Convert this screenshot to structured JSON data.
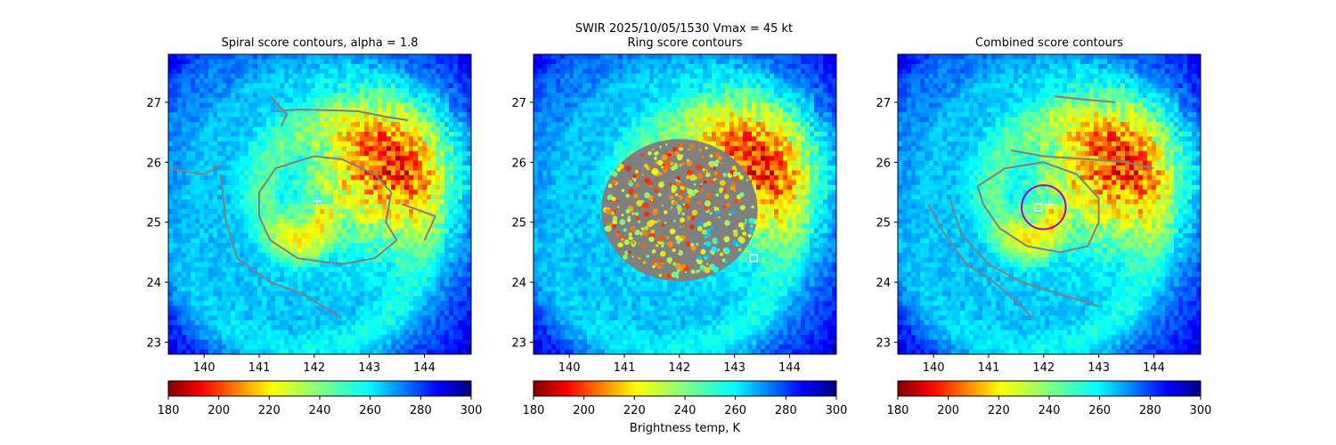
{
  "figure": {
    "suptitle_line1": "SWIR  2025/10/05/1530    Vmax = 45 kt"
  },
  "chart_data": [
    {
      "type": "heatmap",
      "title": "Spiral score contours, alpha =  1.8",
      "xlim": [
        139.35,
        144.85
      ],
      "ylim": [
        22.8,
        27.8
      ],
      "xticks": [
        "140",
        "141",
        "142",
        "143",
        "144"
      ],
      "yticks": [
        "23",
        "24",
        "25",
        "26",
        "27"
      ],
      "colormap": "jet_r",
      "contour_color": "#808080",
      "contours": [
        [
          [
            141.3,
            26.85
          ],
          [
            141.7,
            26.88
          ],
          [
            142.2,
            26.87
          ],
          [
            142.8,
            26.85
          ],
          [
            143.3,
            26.76
          ],
          [
            143.7,
            26.7
          ]
        ],
        [
          [
            141.2,
            27.1
          ],
          [
            141.5,
            26.8
          ],
          [
            141.4,
            26.6
          ]
        ],
        [
          [
            139.3,
            25.9
          ],
          [
            140.0,
            25.8
          ],
          [
            140.3,
            25.95
          ]
        ],
        [
          [
            141.0,
            25.5
          ],
          [
            141.3,
            25.9
          ],
          [
            142.0,
            26.1
          ],
          [
            142.5,
            26.05
          ],
          [
            143.1,
            25.8
          ],
          [
            143.4,
            25.5
          ],
          [
            143.3,
            25.0
          ],
          [
            143.5,
            24.7
          ],
          [
            143.1,
            24.4
          ],
          [
            142.5,
            24.3
          ],
          [
            141.7,
            24.4
          ],
          [
            141.2,
            24.7
          ],
          [
            141.0,
            25.1
          ],
          [
            141.0,
            25.5
          ]
        ],
        [
          [
            140.3,
            25.8
          ],
          [
            140.4,
            25.0
          ],
          [
            140.6,
            24.4
          ],
          [
            141.2,
            24.0
          ],
          [
            141.8,
            23.8
          ],
          [
            142.5,
            23.4
          ]
        ],
        [
          [
            143.6,
            25.3
          ],
          [
            143.9,
            25.2
          ],
          [
            144.2,
            25.1
          ],
          [
            144.0,
            24.7
          ]
        ]
      ],
      "markers": [
        {
          "x": 142.05,
          "y": 25.35,
          "symbol": "+",
          "color": "#ffffff"
        }
      ]
    },
    {
      "type": "heatmap",
      "title": "Ring score contours",
      "xlim": [
        139.35,
        144.85
      ],
      "ylim": [
        22.8,
        27.8
      ],
      "xticks": [
        "140",
        "141",
        "142",
        "143",
        "144"
      ],
      "yticks": [
        "23",
        "24",
        "25",
        "26",
        "27"
      ],
      "colormap": "jet_r",
      "overlay_center": [
        142.0,
        25.2
      ],
      "overlay_radius_deg": 2.6,
      "markers": [
        {
          "x": 143.35,
          "y": 24.4,
          "symbol": "square",
          "color": "#ffffff"
        }
      ]
    },
    {
      "type": "heatmap",
      "title": "Combined score contours",
      "xlim": [
        139.35,
        144.85
      ],
      "ylim": [
        22.8,
        27.8
      ],
      "xticks": [
        "140",
        "141",
        "142",
        "143",
        "144"
      ],
      "yticks": [
        "23",
        "24",
        "25",
        "26",
        "27"
      ],
      "colormap": "jet_r",
      "contour_color": "#808080",
      "contours": [
        [
          [
            142.2,
            27.1
          ],
          [
            142.7,
            27.05
          ],
          [
            143.3,
            27.0
          ]
        ],
        [
          [
            141.4,
            26.2
          ],
          [
            142.0,
            26.1
          ],
          [
            142.8,
            26.05
          ],
          [
            143.5,
            26.0
          ],
          [
            144.0,
            25.9
          ]
        ],
        [
          [
            140.8,
            25.6
          ],
          [
            141.3,
            25.9
          ],
          [
            142.0,
            26.0
          ],
          [
            142.6,
            25.8
          ],
          [
            143.0,
            25.4
          ],
          [
            143.0,
            25.0
          ],
          [
            142.8,
            24.6
          ],
          [
            142.3,
            24.5
          ],
          [
            141.7,
            24.6
          ],
          [
            141.2,
            24.9
          ],
          [
            140.9,
            25.3
          ],
          [
            140.8,
            25.6
          ]
        ],
        [
          [
            140.3,
            25.4
          ],
          [
            140.5,
            24.8
          ],
          [
            141.0,
            24.3
          ],
          [
            141.6,
            24.0
          ],
          [
            142.3,
            23.8
          ],
          [
            143.0,
            23.6
          ]
        ],
        [
          [
            139.9,
            25.3
          ],
          [
            140.2,
            24.8
          ],
          [
            140.6,
            24.3
          ],
          [
            141.1,
            24.0
          ],
          [
            141.6,
            23.6
          ],
          [
            141.8,
            23.4
          ]
        ]
      ],
      "circle": {
        "x": 142.0,
        "y": 25.25,
        "radius_deg": 0.4,
        "color": "#b000b0"
      },
      "markers": [
        {
          "x": 141.9,
          "y": 25.25,
          "symbol": "square",
          "color": "#ffffff"
        },
        {
          "x": 142.1,
          "y": 25.3,
          "symbol": "+",
          "color": "#ffffff"
        }
      ]
    }
  ],
  "colorbar": {
    "ticks": [
      "180",
      "200",
      "220",
      "240",
      "260",
      "280",
      "300"
    ],
    "range": [
      180,
      300
    ],
    "label": "Brightness temp, K"
  }
}
